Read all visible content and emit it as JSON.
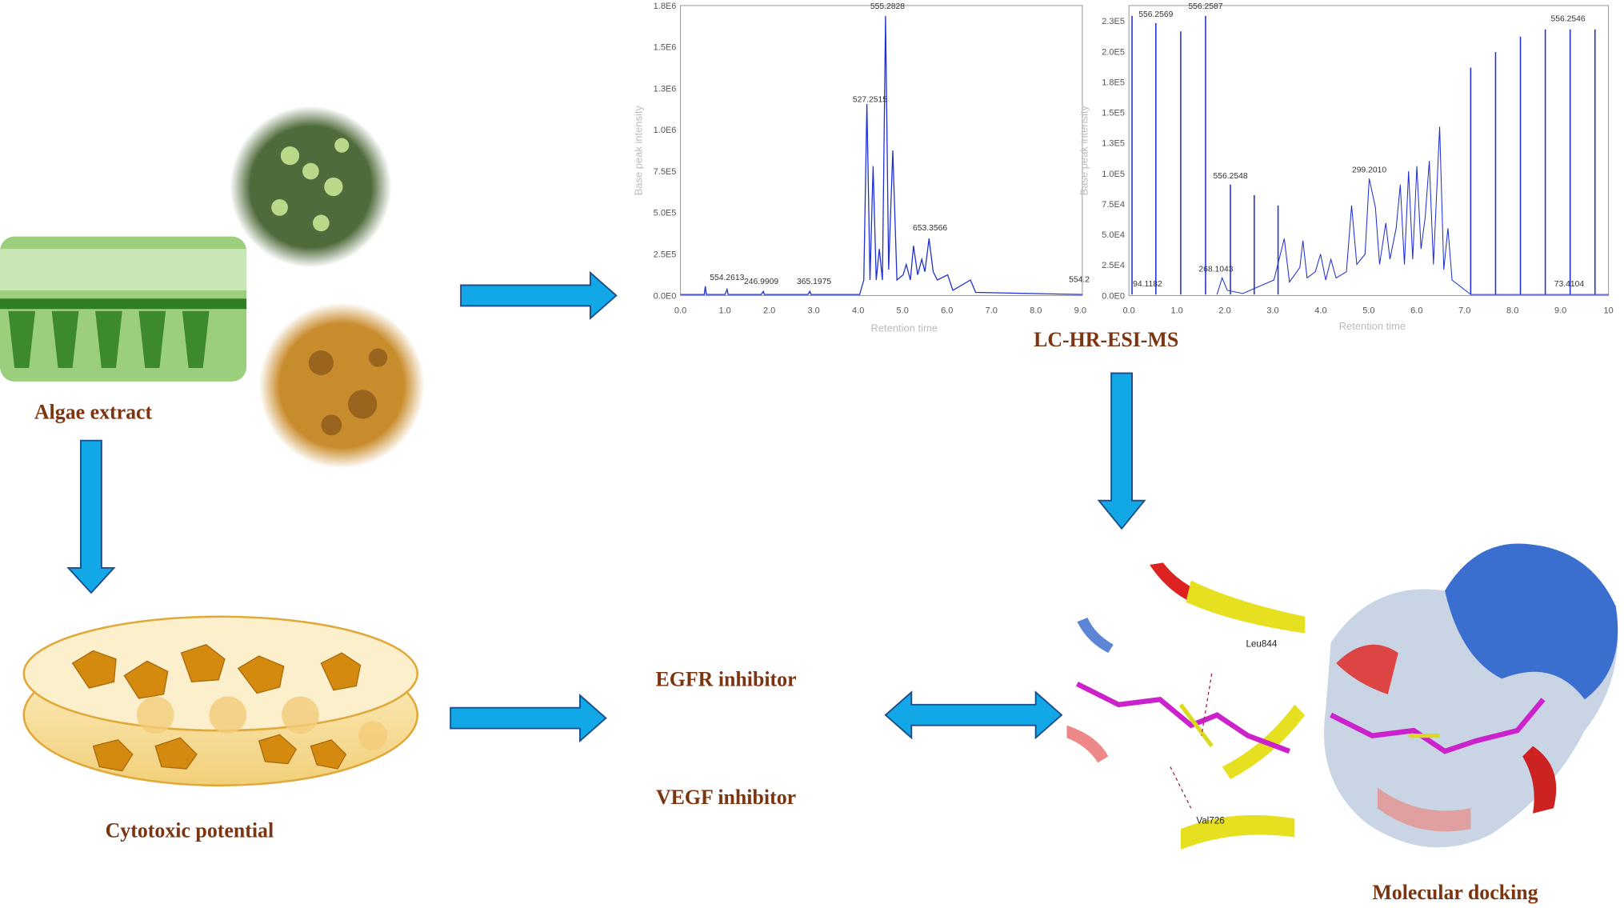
{
  "labels": {
    "algae": "Algae extract",
    "cytotoxic": "Cytotoxic potential",
    "lcms": "LC-HR-ESI-MS",
    "egfr": "EGFR inhibitor",
    "vegf": "VEGF  inhibitor",
    "docking": "Molecular docking"
  },
  "chromatograms": [
    {
      "y_axis_label": "Base peak intensity",
      "x_axis_label": "Retention time",
      "yticks": [
        "0.0E0",
        "2.5E5",
        "5.0E5",
        "7.5E5",
        "1.0E6",
        "1.3E6",
        "1.5E6",
        "1.8E6"
      ],
      "xticks": [
        "0.0",
        "1.0",
        "2.0",
        "3.0",
        "4.0",
        "5.0",
        "6.0",
        "7.0",
        "8.0",
        "9.0"
      ],
      "peak_labels": [
        "554.2613",
        "246.9909",
        "365.1975",
        "527.2515",
        "555.2828",
        "653.3566",
        "554.2"
      ]
    },
    {
      "y_axis_label": "Base peak intensity",
      "x_axis_label": "Retention time",
      "yticks": [
        "0.0E0",
        "2.5E4",
        "5.0E4",
        "7.5E4",
        "1.0E5",
        "1.3E5",
        "1.5E5",
        "1.8E5",
        "2.0E5",
        "2.3E5"
      ],
      "xticks": [
        "0.0",
        "1.0",
        "2.0",
        "3.0",
        "4.0",
        "5.0",
        "6.0",
        "7.0",
        "8.0",
        "9.0",
        "10"
      ],
      "peak_labels": [
        "556.2569",
        "556.2587",
        "556.2548",
        "268.1043",
        "299.2010",
        "556.2546",
        "94.1182",
        "73.4104"
      ]
    }
  ],
  "docking_residues": [
    "Leu844",
    "Val726"
  ]
}
